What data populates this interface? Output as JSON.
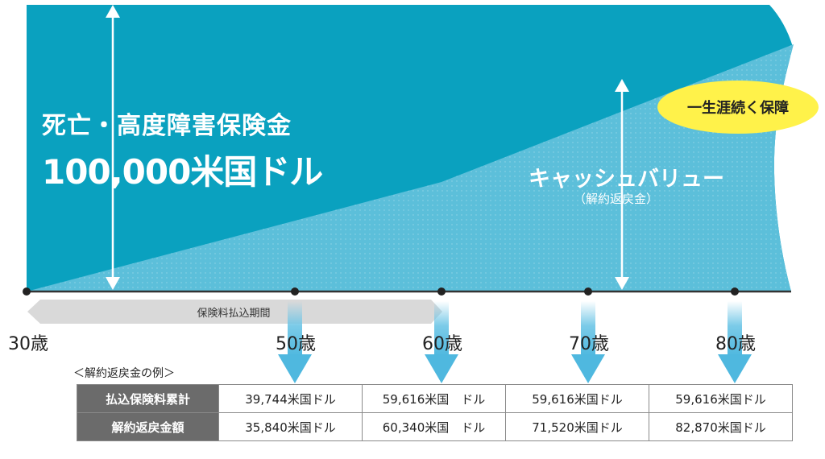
{
  "death_benefit": {
    "label": "死亡・高度障害保険金",
    "amount": "100,000米国ドル"
  },
  "cash_value": {
    "label": "キャッシュバリュー",
    "sublabel": "（解約返戻金）"
  },
  "lifetime_badge": "一生涯続く保障",
  "premium_period_label": "保険料払込期間",
  "ages": [
    "30歳",
    "50歳",
    "60歳",
    "70歳",
    "80歳"
  ],
  "example": {
    "title": "＜解約返戻金の例＞",
    "rows": [
      {
        "header": "払込保険料累計",
        "values": [
          "39,744米国ドル",
          "59,616米国　ドル",
          "59,616米国ドル",
          "59,616米国ドル"
        ]
      },
      {
        "header": "解約返戻金額",
        "values": [
          "35,840米国ドル",
          "60,340米国　ドル",
          "71,520米国ドル",
          "82,870米国ドル"
        ]
      }
    ]
  },
  "colors": {
    "death_area": "#0aa1bf",
    "cash_value_area": "#5cbfda",
    "badge": "#fff24a",
    "arrow": "#6cc5e6",
    "table_header": "#6b6b6b"
  }
}
